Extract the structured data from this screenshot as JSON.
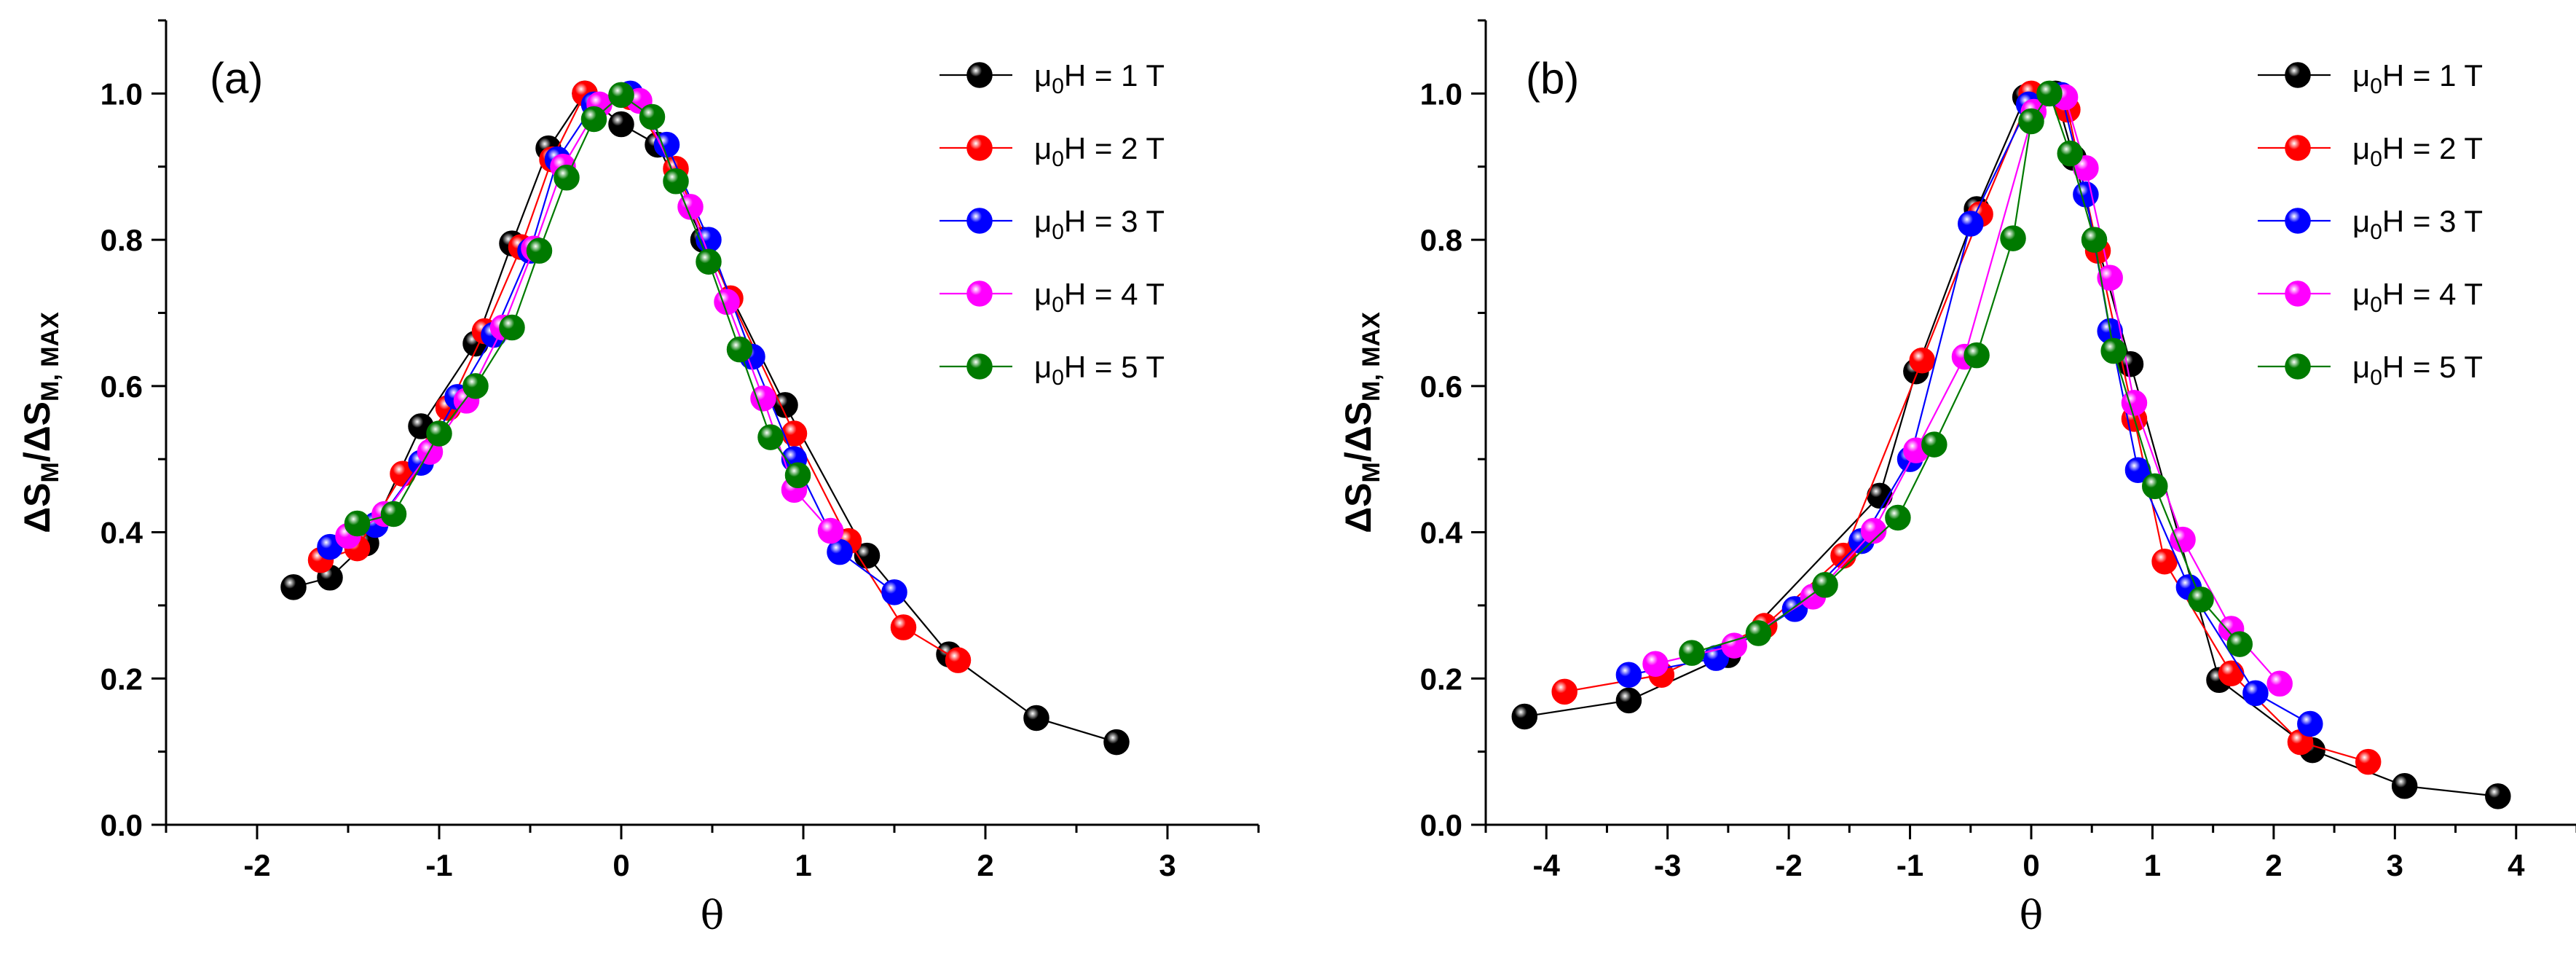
{
  "chart_data": [
    {
      "type": "line",
      "panel_label": "(a)",
      "title": "",
      "xlabel": "θ",
      "ylabel": "ΔS_M/ΔS_M, MAX",
      "ylabel_parts": {
        "main": "ΔS",
        "sub1": "M",
        "slash": "/ΔS",
        "sub2": "M, MAX"
      },
      "xlim": [
        -2.5,
        3.5
      ],
      "ylim": [
        0.0,
        1.1
      ],
      "xticks": [
        -2,
        -1,
        0,
        1,
        2,
        3
      ],
      "xtick_labels": [
        "-2",
        "-1",
        "0",
        "1",
        "2",
        "3"
      ],
      "yticks": [
        0.0,
        0.2,
        0.4,
        0.6,
        0.8,
        1.0
      ],
      "ytick_labels": [
        "0.0",
        "0.2",
        "0.4",
        "0.6",
        "0.8",
        "1.0"
      ],
      "grid": false,
      "legend_position": "top-right",
      "series": [
        {
          "name": "μ0H = 1 T",
          "label_parts": [
            "μ",
            "0",
            "H = 1 T"
          ],
          "color": "#000000",
          "x": [
            -1.8,
            -1.6,
            -1.4,
            -1.1,
            -0.8,
            -0.6,
            -0.4,
            -0.2,
            0.0,
            0.2,
            0.45,
            0.9,
            1.35,
            1.8,
            2.28,
            2.72
          ],
          "y": [
            0.325,
            0.338,
            0.385,
            0.545,
            0.658,
            0.795,
            0.925,
            1.0,
            0.958,
            0.93,
            0.8,
            0.574,
            0.368,
            0.233,
            0.146,
            0.113
          ]
        },
        {
          "name": "μ0H = 2 T",
          "label_parts": [
            "μ",
            "0",
            "H = 2 T"
          ],
          "color": "#ff0000",
          "x": [
            -1.65,
            -1.45,
            -1.2,
            -0.95,
            -0.75,
            -0.55,
            -0.38,
            -0.2,
            0.05,
            0.3,
            0.6,
            0.95,
            1.25,
            1.55,
            1.85
          ],
          "y": [
            0.362,
            0.378,
            0.48,
            0.57,
            0.675,
            0.79,
            0.91,
            1.0,
            0.995,
            0.897,
            0.72,
            0.535,
            0.388,
            0.27,
            0.225
          ]
        },
        {
          "name": "μ0H = 3 T",
          "label_parts": [
            "μ",
            "0",
            "H = 3 T"
          ],
          "color": "#0000ff",
          "x": [
            -1.6,
            -1.35,
            -1.1,
            -0.9,
            -0.7,
            -0.5,
            -0.35,
            -0.15,
            0.05,
            0.25,
            0.48,
            0.72,
            0.95,
            1.2,
            1.5
          ],
          "y": [
            0.38,
            0.41,
            0.495,
            0.585,
            0.67,
            0.785,
            0.91,
            0.985,
            1.0,
            0.93,
            0.8,
            0.64,
            0.5,
            0.373,
            0.318
          ]
        },
        {
          "name": "μ0H = 4 T",
          "label_parts": [
            "μ",
            "0",
            "H = 4 T"
          ],
          "color": "#ff00ff",
          "x": [
            -1.5,
            -1.3,
            -1.05,
            -0.85,
            -0.65,
            -0.48,
            -0.32,
            -0.12,
            0.1,
            0.38,
            0.58,
            0.78,
            0.95,
            1.15
          ],
          "y": [
            0.395,
            0.425,
            0.51,
            0.58,
            0.68,
            0.788,
            0.9,
            0.985,
            0.99,
            0.845,
            0.715,
            0.583,
            0.458,
            0.402
          ]
        },
        {
          "name": "μ0H = 5 T",
          "label_parts": [
            "μ",
            "0",
            "H = 5 T"
          ],
          "color": "#007a00",
          "x": [
            -1.45,
            -1.25,
            -1.0,
            -0.8,
            -0.6,
            -0.45,
            -0.3,
            -0.15,
            0.0,
            0.17,
            0.3,
            0.48,
            0.65,
            0.82,
            0.97
          ],
          "y": [
            0.412,
            0.425,
            0.535,
            0.6,
            0.68,
            0.785,
            0.885,
            0.965,
            0.998,
            0.968,
            0.88,
            0.77,
            0.65,
            0.53,
            0.478
          ]
        }
      ]
    },
    {
      "type": "line",
      "panel_label": "(b)",
      "title": "",
      "xlabel": "θ",
      "ylabel": "ΔS_M/ΔS_M, MAX",
      "ylabel_parts": {
        "main": "ΔS",
        "sub1": "M",
        "slash": "/ΔS",
        "sub2": "M, MAX"
      },
      "xlim": [
        -4.5,
        4.5
      ],
      "ylim": [
        0.0,
        1.1
      ],
      "xticks": [
        -4,
        -3,
        -2,
        -1,
        0,
        1,
        2,
        3,
        4
      ],
      "xtick_labels": [
        "-4",
        "-3",
        "-2",
        "-1",
        "0",
        "1",
        "2",
        "3",
        "4"
      ],
      "yticks": [
        0.0,
        0.2,
        0.4,
        0.6,
        0.8,
        1.0
      ],
      "ytick_labels": [
        "0.0",
        "0.2",
        "0.4",
        "0.6",
        "0.8",
        "1.0"
      ],
      "grid": false,
      "legend_position": "top-right",
      "series": [
        {
          "name": "μ0H = 1 T",
          "label_parts": [
            "μ",
            "0",
            "H = 1 T"
          ],
          "color": "#000000",
          "x": [
            -4.18,
            -3.32,
            -2.5,
            -1.25,
            -0.95,
            -0.45,
            -0.05,
            0.2,
            0.35,
            0.82,
            1.55,
            2.32,
            3.08,
            3.85
          ],
          "y": [
            0.148,
            0.17,
            0.232,
            0.45,
            0.62,
            0.842,
            0.995,
            1.0,
            0.912,
            0.63,
            0.198,
            0.102,
            0.053,
            0.039
          ]
        },
        {
          "name": "μ0H = 2 T",
          "label_parts": [
            "μ",
            "0",
            "H = 2 T"
          ],
          "color": "#ff0000",
          "x": [
            -3.85,
            -3.05,
            -2.2,
            -1.55,
            -0.9,
            -0.42,
            0.0,
            0.3,
            0.55,
            0.85,
            1.1,
            1.65,
            2.22,
            2.78
          ],
          "y": [
            0.182,
            0.205,
            0.272,
            0.368,
            0.635,
            0.835,
            1.0,
            0.978,
            0.785,
            0.555,
            0.36,
            0.207,
            0.113,
            0.086
          ]
        },
        {
          "name": "μ0H = 3 T",
          "label_parts": [
            "μ",
            "0",
            "H = 3 T"
          ],
          "color": "#0000ff",
          "x": [
            -3.32,
            -2.6,
            -1.95,
            -1.4,
            -1.0,
            -0.5,
            -0.02,
            0.25,
            0.45,
            0.65,
            0.88,
            1.3,
            1.85,
            2.3
          ],
          "y": [
            0.205,
            0.228,
            0.295,
            0.388,
            0.5,
            0.822,
            0.985,
            0.998,
            0.862,
            0.675,
            0.485,
            0.325,
            0.18,
            0.138
          ]
        },
        {
          "name": "μ0H = 4 T",
          "label_parts": [
            "μ",
            "0",
            "H = 4 T"
          ],
          "color": "#ff00ff",
          "x": [
            -3.1,
            -2.45,
            -1.8,
            -1.3,
            -0.95,
            -0.55,
            0.02,
            0.28,
            0.45,
            0.65,
            0.85,
            1.25,
            1.65,
            2.05
          ],
          "y": [
            0.22,
            0.245,
            0.312,
            0.402,
            0.512,
            0.64,
            0.975,
            0.995,
            0.898,
            0.748,
            0.577,
            0.39,
            0.268,
            0.193
          ]
        },
        {
          "name": "μ0H = 5 T",
          "label_parts": [
            "μ",
            "0",
            "H = 5 T"
          ],
          "color": "#007a00",
          "x": [
            -2.8,
            -2.25,
            -1.7,
            -1.1,
            -0.8,
            -0.45,
            -0.15,
            0.0,
            0.15,
            0.32,
            0.52,
            0.68,
            1.02,
            1.4,
            1.72
          ],
          "y": [
            0.235,
            0.262,
            0.328,
            0.42,
            0.52,
            0.642,
            0.802,
            0.962,
            1.0,
            0.918,
            0.8,
            0.648,
            0.463,
            0.308,
            0.247
          ]
        }
      ]
    }
  ]
}
